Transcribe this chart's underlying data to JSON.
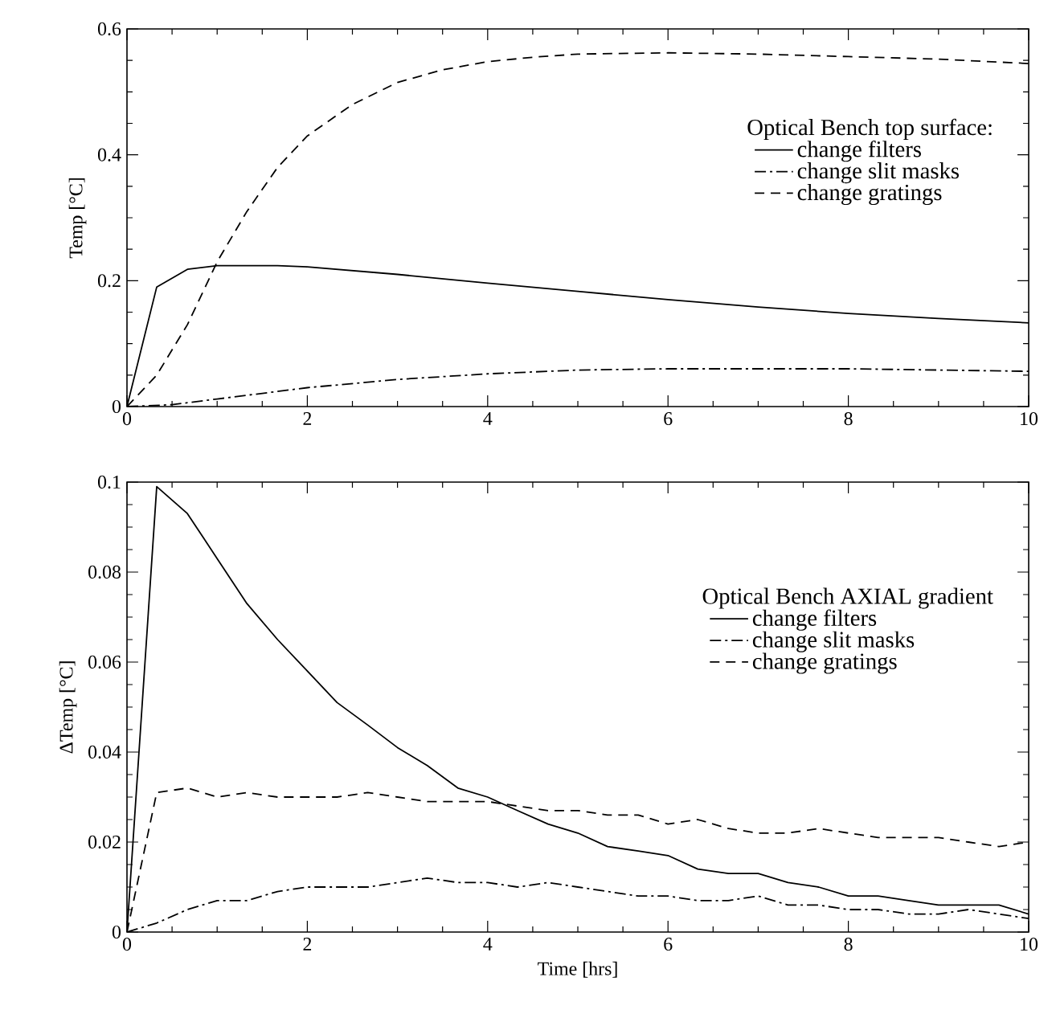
{
  "chart_data": [
    {
      "type": "line",
      "ylabel": "Temp [°C]",
      "legend_title": "Optical Bench top surface:",
      "xlim": [
        0,
        10
      ],
      "ylim": [
        0,
        0.6
      ],
      "xticks": [
        0,
        2,
        4,
        6,
        8,
        10
      ],
      "yticks": [
        0,
        0.2,
        0.4,
        0.6
      ],
      "legend": "top right",
      "grid": false,
      "series": [
        {
          "name": "change filters",
          "color": "#000000",
          "line_style": "solid",
          "x": [
            0,
            0.33,
            0.67,
            1,
            1.67,
            2,
            3,
            4,
            5,
            6,
            7,
            8,
            9,
            10
          ],
          "values": [
            0,
            0.19,
            0.218,
            0.224,
            0.224,
            0.222,
            0.21,
            0.196,
            0.183,
            0.17,
            0.158,
            0.148,
            0.14,
            0.133
          ]
        },
        {
          "name": "change slit masks",
          "color": "#000000",
          "line_style": "dashdot",
          "x": [
            0,
            0.5,
            1,
            2,
            3,
            4,
            5,
            6,
            7,
            8,
            9,
            10
          ],
          "values": [
            0,
            0.003,
            0.012,
            0.03,
            0.043,
            0.052,
            0.058,
            0.06,
            0.06,
            0.06,
            0.058,
            0.056
          ]
        },
        {
          "name": "change gratings",
          "color": "#000000",
          "line_style": "dashed",
          "x": [
            0,
            0.33,
            0.67,
            1,
            1.33,
            1.67,
            2,
            2.5,
            3,
            3.5,
            4,
            4.5,
            5,
            6,
            7,
            8,
            9,
            10
          ],
          "values": [
            0,
            0.05,
            0.13,
            0.23,
            0.31,
            0.38,
            0.43,
            0.48,
            0.515,
            0.535,
            0.548,
            0.555,
            0.56,
            0.562,
            0.56,
            0.556,
            0.552,
            0.545
          ]
        }
      ]
    },
    {
      "type": "line",
      "xlabel": "Time [hrs]",
      "ylabel": "ΔTemp [°C]",
      "legend_title": "Optical Bench AXIAL gradient",
      "xlim": [
        0,
        10
      ],
      "ylim": [
        0,
        0.1
      ],
      "xticks": [
        0,
        2,
        4,
        6,
        8,
        10
      ],
      "yticks": [
        0,
        0.02,
        0.04,
        0.06,
        0.08,
        0.1
      ],
      "legend": "top right",
      "grid": false,
      "series": [
        {
          "name": "change filters",
          "color": "#000000",
          "line_style": "solid",
          "x": [
            0,
            0.33,
            0.67,
            1,
            1.33,
            1.67,
            2,
            2.33,
            2.67,
            3,
            3.33,
            3.67,
            4,
            4.33,
            4.67,
            5,
            5.33,
            5.67,
            6,
            6.33,
            6.67,
            7,
            7.33,
            7.67,
            8,
            8.33,
            8.67,
            9,
            9.33,
            9.67,
            10
          ],
          "values": [
            0,
            0.099,
            0.093,
            0.083,
            0.073,
            0.065,
            0.058,
            0.051,
            0.046,
            0.041,
            0.037,
            0.032,
            0.03,
            0.027,
            0.024,
            0.022,
            0.019,
            0.018,
            0.017,
            0.014,
            0.013,
            0.013,
            0.011,
            0.01,
            0.008,
            0.008,
            0.007,
            0.006,
            0.006,
            0.006,
            0.004
          ]
        },
        {
          "name": "change slit masks",
          "color": "#000000",
          "line_style": "dashdot",
          "x": [
            0,
            0.33,
            0.67,
            1,
            1.33,
            1.67,
            2,
            2.33,
            2.67,
            3,
            3.33,
            3.67,
            4,
            4.33,
            4.67,
            5,
            5.33,
            5.67,
            6,
            6.33,
            6.67,
            7,
            7.33,
            7.67,
            8,
            8.33,
            8.67,
            9,
            9.33,
            9.67,
            10
          ],
          "values": [
            0,
            0.002,
            0.005,
            0.007,
            0.007,
            0.009,
            0.01,
            0.01,
            0.01,
            0.011,
            0.012,
            0.011,
            0.011,
            0.01,
            0.011,
            0.01,
            0.009,
            0.008,
            0.008,
            0.007,
            0.007,
            0.008,
            0.006,
            0.006,
            0.005,
            0.005,
            0.004,
            0.004,
            0.005,
            0.004,
            0.003
          ]
        },
        {
          "name": "change gratings",
          "color": "#000000",
          "line_style": "dashed",
          "x": [
            0,
            0.33,
            0.67,
            1,
            1.33,
            1.67,
            2,
            2.33,
            2.67,
            3,
            3.33,
            3.67,
            4,
            4.33,
            4.67,
            5,
            5.33,
            5.67,
            6,
            6.33,
            6.67,
            7,
            7.33,
            7.67,
            8,
            8.33,
            8.67,
            9,
            9.33,
            9.67,
            10
          ],
          "values": [
            0,
            0.031,
            0.032,
            0.03,
            0.031,
            0.03,
            0.03,
            0.03,
            0.031,
            0.03,
            0.029,
            0.029,
            0.029,
            0.028,
            0.027,
            0.027,
            0.026,
            0.026,
            0.024,
            0.025,
            0.023,
            0.022,
            0.022,
            0.023,
            0.022,
            0.021,
            0.021,
            0.021,
            0.02,
            0.019,
            0.02
          ]
        }
      ]
    }
  ]
}
